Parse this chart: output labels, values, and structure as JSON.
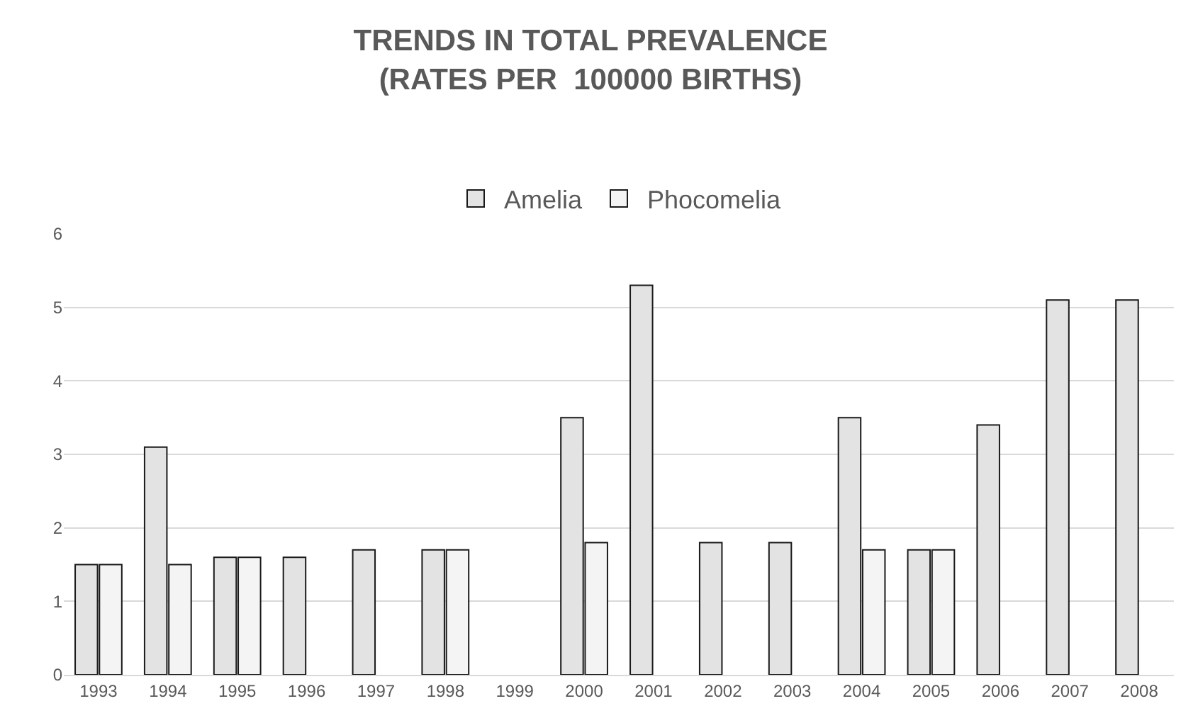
{
  "chart_data": {
    "type": "bar",
    "title": "TRENDS IN TOTAL PREVALENCE\n(RATES PER  100000 BIRTHS)",
    "categories": [
      "1993",
      "1994",
      "1995",
      "1996",
      "1997",
      "1998",
      "1999",
      "2000",
      "2001",
      "2002",
      "2003",
      "2004",
      "2005",
      "2006",
      "2007",
      "2008"
    ],
    "series": [
      {
        "name": "Amelia",
        "color": "#e3e3e3",
        "values": [
          1.5,
          3.1,
          1.6,
          1.6,
          1.7,
          1.7,
          null,
          3.5,
          5.3,
          1.8,
          1.8,
          3.5,
          1.7,
          3.4,
          5.1,
          5.1
        ]
      },
      {
        "name": "Phocomelia",
        "color": "#f4f4f4",
        "values": [
          1.5,
          1.5,
          1.6,
          null,
          null,
          1.7,
          null,
          1.8,
          null,
          null,
          null,
          1.7,
          1.7,
          null,
          null,
          null
        ]
      }
    ],
    "ylim": [
      0,
      6
    ],
    "yticks": [
      0,
      1,
      2,
      3,
      4,
      5,
      6
    ],
    "grid": "y",
    "legend": "top"
  }
}
